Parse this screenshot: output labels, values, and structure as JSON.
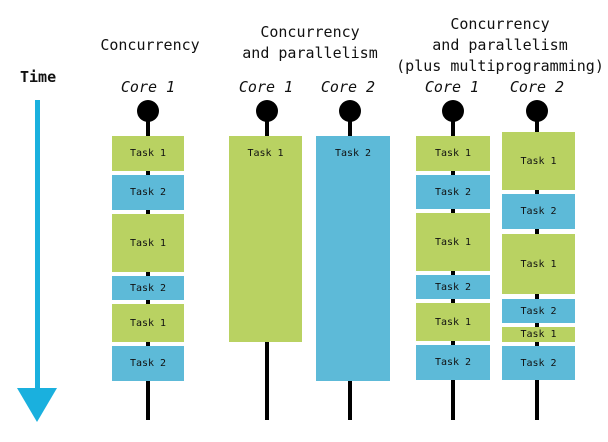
{
  "time_label": "Time",
  "columns": [
    {
      "title": [
        "Concurrency"
      ]
    },
    {
      "title": [
        "Concurrency",
        "and parallelism"
      ]
    },
    {
      "title": [
        "Concurrency",
        "and parallelism",
        "(plus multiprogramming)"
      ]
    }
  ],
  "core_labels": [
    "Core 1",
    "Core 1",
    "Core 2",
    "Core 1",
    "Core 2"
  ],
  "task_labels": {
    "t1": "Task 1",
    "t2": "Task 2"
  },
  "colors": {
    "task1": "#b9d262",
    "task2": "#5dbad8",
    "time_arrow": "#1ab0de"
  }
}
